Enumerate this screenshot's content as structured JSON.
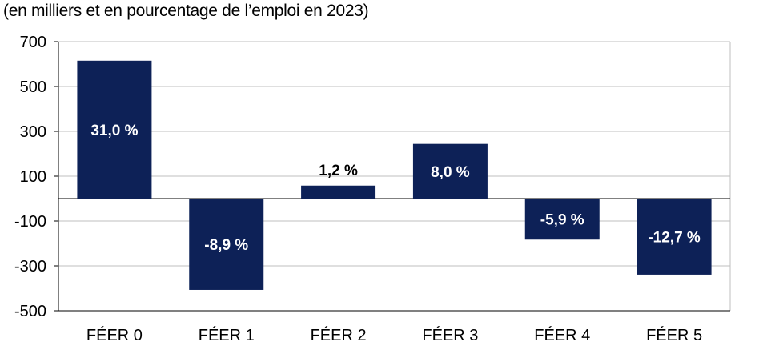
{
  "subtitle": "(en milliers et en pourcentage de l’emploi en 2023)",
  "colors": {
    "bar": "#0d2157",
    "grid": "#bfbfbf",
    "inside_label": "#ffffff",
    "outside_label": "#000000"
  },
  "chart_data": {
    "type": "bar",
    "title": "",
    "subtitle": "(en milliers et en pourcentage de l’emploi en 2023)",
    "xlabel": "",
    "ylabel": "",
    "ylim": [
      -500,
      700
    ],
    "yticks": [
      700,
      500,
      300,
      100,
      -100,
      -300,
      -500
    ],
    "ytick_labels": [
      "700",
      "500",
      "300",
      "100",
      "-100",
      "-300",
      "-500"
    ],
    "grid": true,
    "legend": "none",
    "categories": [
      "FÉER 0",
      "FÉER 1",
      "FÉER 2",
      "FÉER 3",
      "FÉER 4",
      "FÉER 5"
    ],
    "values": [
      615,
      -407,
      58,
      244,
      -183,
      -339
    ],
    "data_labels": [
      "31,0 %",
      "-8,9 %",
      "1,2 %",
      "8,0 %",
      "-5,9 %",
      "-12,7 %"
    ]
  }
}
